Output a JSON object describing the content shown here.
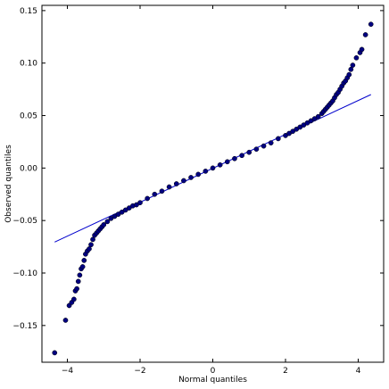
{
  "chart_data": {
    "type": "scatter",
    "title": "",
    "xlabel": "Normal quantiles",
    "ylabel": "Observed quantiles",
    "xlim": [
      -4.7,
      4.7
    ],
    "ylim": [
      -0.185,
      0.155
    ],
    "xticks": [
      -4,
      -2,
      0,
      2,
      4
    ],
    "xtick_labels": [
      "−4",
      "−2",
      "0",
      "2",
      "4"
    ],
    "yticks": [
      -0.15,
      -0.1,
      -0.05,
      0.0,
      0.05,
      0.1,
      0.15
    ],
    "ytick_labels": [
      "−0.15",
      "−0.10",
      "−0.05",
      "0.00",
      "0.05",
      "0.10",
      "0.15"
    ],
    "grid": false,
    "legend": "none",
    "marker_color": "#000080",
    "reference_line": {
      "color": "#0000cc",
      "x": [
        -4.35,
        4.35
      ],
      "y": [
        -0.0705,
        0.07
      ]
    },
    "series": [
      {
        "x": [
          -4.35,
          -4.05,
          -3.95,
          -3.88,
          -3.82,
          -3.78,
          -3.74,
          -3.7,
          -3.66,
          -3.62,
          -3.58,
          -3.54,
          -3.5,
          -3.45,
          -3.4,
          -3.35,
          -3.3,
          -3.25,
          -3.2,
          -3.15,
          -3.1,
          -3.05,
          -3.0,
          -2.9,
          -2.8,
          -2.7,
          -2.6,
          -2.5,
          -2.4,
          -2.3,
          -2.2,
          -2.1,
          -2.0,
          -1.8,
          -1.6,
          -1.4,
          -1.2,
          -1.0,
          -0.8,
          -0.6,
          -0.4,
          -0.2,
          0.0,
          0.2,
          0.4,
          0.6,
          0.8,
          1.0,
          1.2,
          1.4,
          1.6,
          1.8,
          2.0,
          2.1,
          2.2,
          2.3,
          2.4,
          2.5,
          2.6,
          2.7,
          2.8,
          2.9,
          3.0,
          3.05,
          3.1,
          3.15,
          3.2,
          3.25,
          3.3,
          3.35,
          3.4,
          3.45,
          3.5,
          3.55,
          3.6,
          3.65,
          3.7,
          3.75,
          3.8,
          3.85,
          3.95,
          4.05,
          4.1,
          4.2,
          4.35
        ],
        "y": [
          -0.176,
          -0.145,
          -0.131,
          -0.128,
          -0.125,
          -0.117,
          -0.115,
          -0.108,
          -0.102,
          -0.096,
          -0.094,
          -0.088,
          -0.082,
          -0.079,
          -0.077,
          -0.073,
          -0.068,
          -0.064,
          -0.062,
          -0.06,
          -0.058,
          -0.056,
          -0.054,
          -0.051,
          -0.048,
          -0.046,
          -0.044,
          -0.042,
          -0.04,
          -0.038,
          -0.036,
          -0.035,
          -0.033,
          -0.029,
          -0.025,
          -0.022,
          -0.018,
          -0.015,
          -0.012,
          -0.009,
          -0.006,
          -0.003,
          0.0,
          0.003,
          0.006,
          0.009,
          0.012,
          0.015,
          0.018,
          0.021,
          0.024,
          0.028,
          0.031,
          0.033,
          0.035,
          0.037,
          0.039,
          0.041,
          0.043,
          0.045,
          0.047,
          0.049,
          0.052,
          0.054,
          0.056,
          0.058,
          0.06,
          0.062,
          0.064,
          0.067,
          0.07,
          0.072,
          0.075,
          0.078,
          0.081,
          0.083,
          0.086,
          0.089,
          0.094,
          0.098,
          0.105,
          0.11,
          0.113,
          0.127,
          0.137
        ]
      }
    ]
  }
}
